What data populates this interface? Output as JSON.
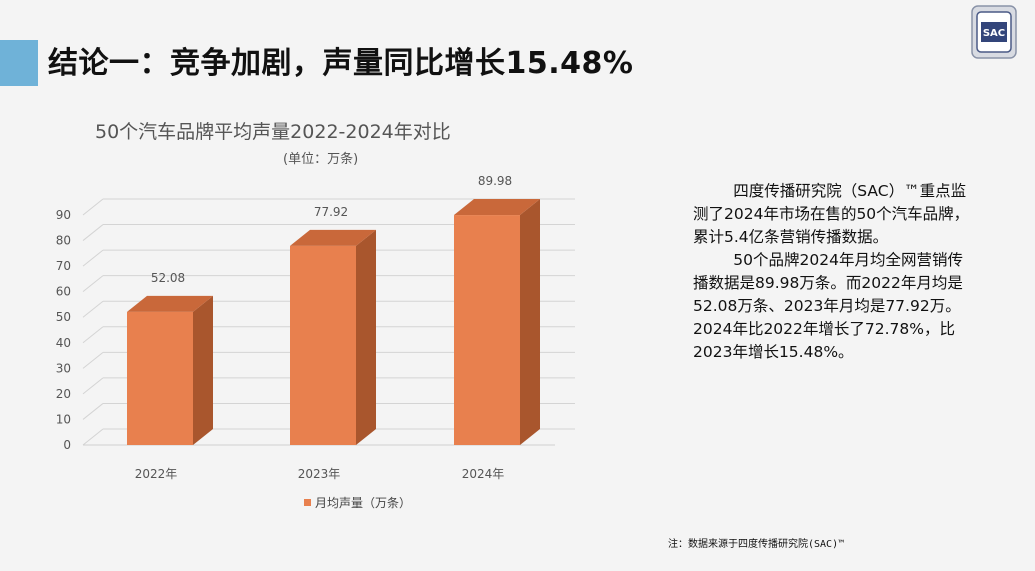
{
  "slide": {
    "title": "结论一：竞争加剧，声量同比增长15.48%",
    "accent_color": "#6fb2d8"
  },
  "logo": {
    "text": "SAC",
    "icon": "sac-seal-icon"
  },
  "chart_data": {
    "type": "bar",
    "title": "50个汽车品牌平均声量2022-2024年对比",
    "subtitle": "(单位：万条)",
    "categories": [
      "2022年",
      "2023年",
      "2024年"
    ],
    "series": [
      {
        "name": "月均声量（万条）",
        "values": [
          52.08,
          77.92,
          89.98
        ],
        "color": "#e8804e"
      }
    ],
    "data_labels": [
      "52.08",
      "77.92",
      "89.98"
    ],
    "yticks": [
      "0",
      "10",
      "20",
      "30",
      "40",
      "50",
      "60",
      "70",
      "80",
      "90"
    ],
    "ylim": [
      0,
      90
    ],
    "grid": true,
    "legend_position": "bottom",
    "style": "3d-column"
  },
  "summary": {
    "paragraph1": "四度传播研究院（SAC）™重点监测了2024年市场在售的50个汽车品牌，累计5.4亿条营销传播数据。",
    "paragraph2": "50个品牌2024年月均全网营销传播数据是89.98万条。而2022年月均是52.08万条、2023年月均是77.92万。2024年比2022年增长了72.78%，比2023年增长15.48%。"
  },
  "footnote": "注：数据来源于四度传播研究院(SAC)™"
}
